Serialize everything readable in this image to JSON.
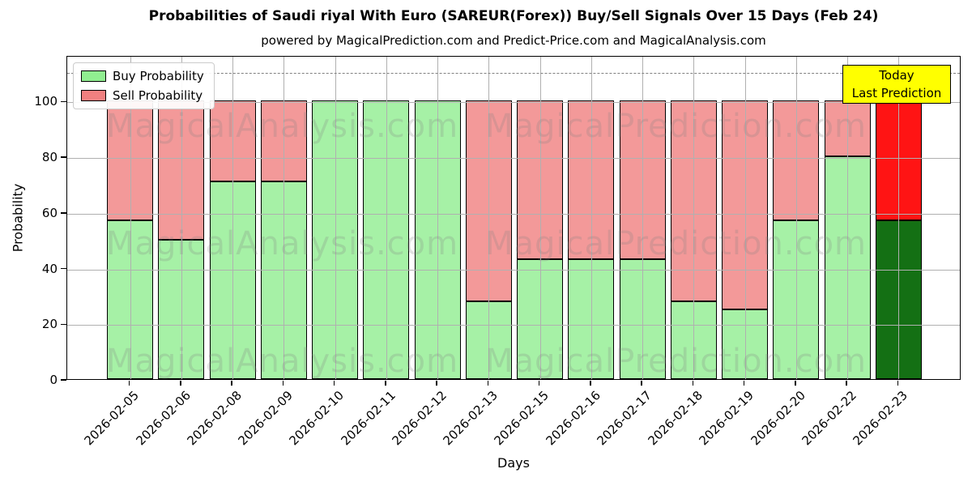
{
  "header": {
    "title": "Probabilities of Saudi riyal With Euro (SAREUR(Forex)) Buy/Sell Signals Over 15 Days (Feb 24)",
    "subtitle": "powered by MagicalPrediction.com and Predict-Price.com and MagicalAnalysis.com"
  },
  "legend": {
    "items": [
      {
        "label": "Buy Probability",
        "color": "#90EE90"
      },
      {
        "label": "Sell Probability",
        "color": "#F08080"
      }
    ]
  },
  "annotation": {
    "line1": "Today",
    "line2": "Last Prediction",
    "bg": "#FFFF00"
  },
  "watermarks": {
    "left": "MagicalAnalysis.com",
    "right": "MagicalPrediction.com",
    "color": "#808080",
    "opacity": 0.24
  },
  "axes": {
    "xlabel": "Days",
    "ylabel": "Probability",
    "yticks": [
      0,
      20,
      40,
      60,
      80,
      100
    ],
    "ylim": [
      0,
      116.4
    ],
    "dashed_line_y": 110.5,
    "grid_color": "#b0b0b0",
    "dashed_color": "#808080"
  },
  "colors": {
    "buy": "#90EE90",
    "sell": "#F08080",
    "today_buy": "#006400",
    "today_sell": "#FF0000",
    "today_edge": "#FFA500",
    "bar_edge": "#000000"
  },
  "chart_data": {
    "type": "bar",
    "stacked": true,
    "title": "Probabilities of Saudi riyal With Euro (SAREUR(Forex)) Buy/Sell Signals Over 15 Days (Feb 24)",
    "xlabel": "Days",
    "ylabel": "Probability",
    "ylim": [
      0,
      116.4
    ],
    "grid": true,
    "legend_position": "upper left",
    "categories": [
      "2026-02-05",
      "2026-02-06",
      "2026-02-08",
      "2026-02-09",
      "2026-02-10",
      "2026-02-11",
      "2026-02-12",
      "2026-02-13",
      "2026-02-15",
      "2026-02-16",
      "2026-02-17",
      "2026-02-18",
      "2026-02-19",
      "2026-02-20",
      "2026-02-22",
      "2026-02-23"
    ],
    "series": [
      {
        "name": "Buy Probability",
        "values": [
          57,
          50,
          71,
          71,
          100,
          100,
          100,
          28,
          43,
          43,
          43,
          28,
          25,
          57,
          80,
          57
        ]
      },
      {
        "name": "Sell Probability",
        "values": [
          43,
          50,
          29,
          29,
          0,
          0,
          0,
          72,
          57,
          57,
          57,
          72,
          75,
          43,
          20,
          43
        ]
      }
    ],
    "today_index": 15,
    "today_note": "Today / Last Prediction"
  }
}
